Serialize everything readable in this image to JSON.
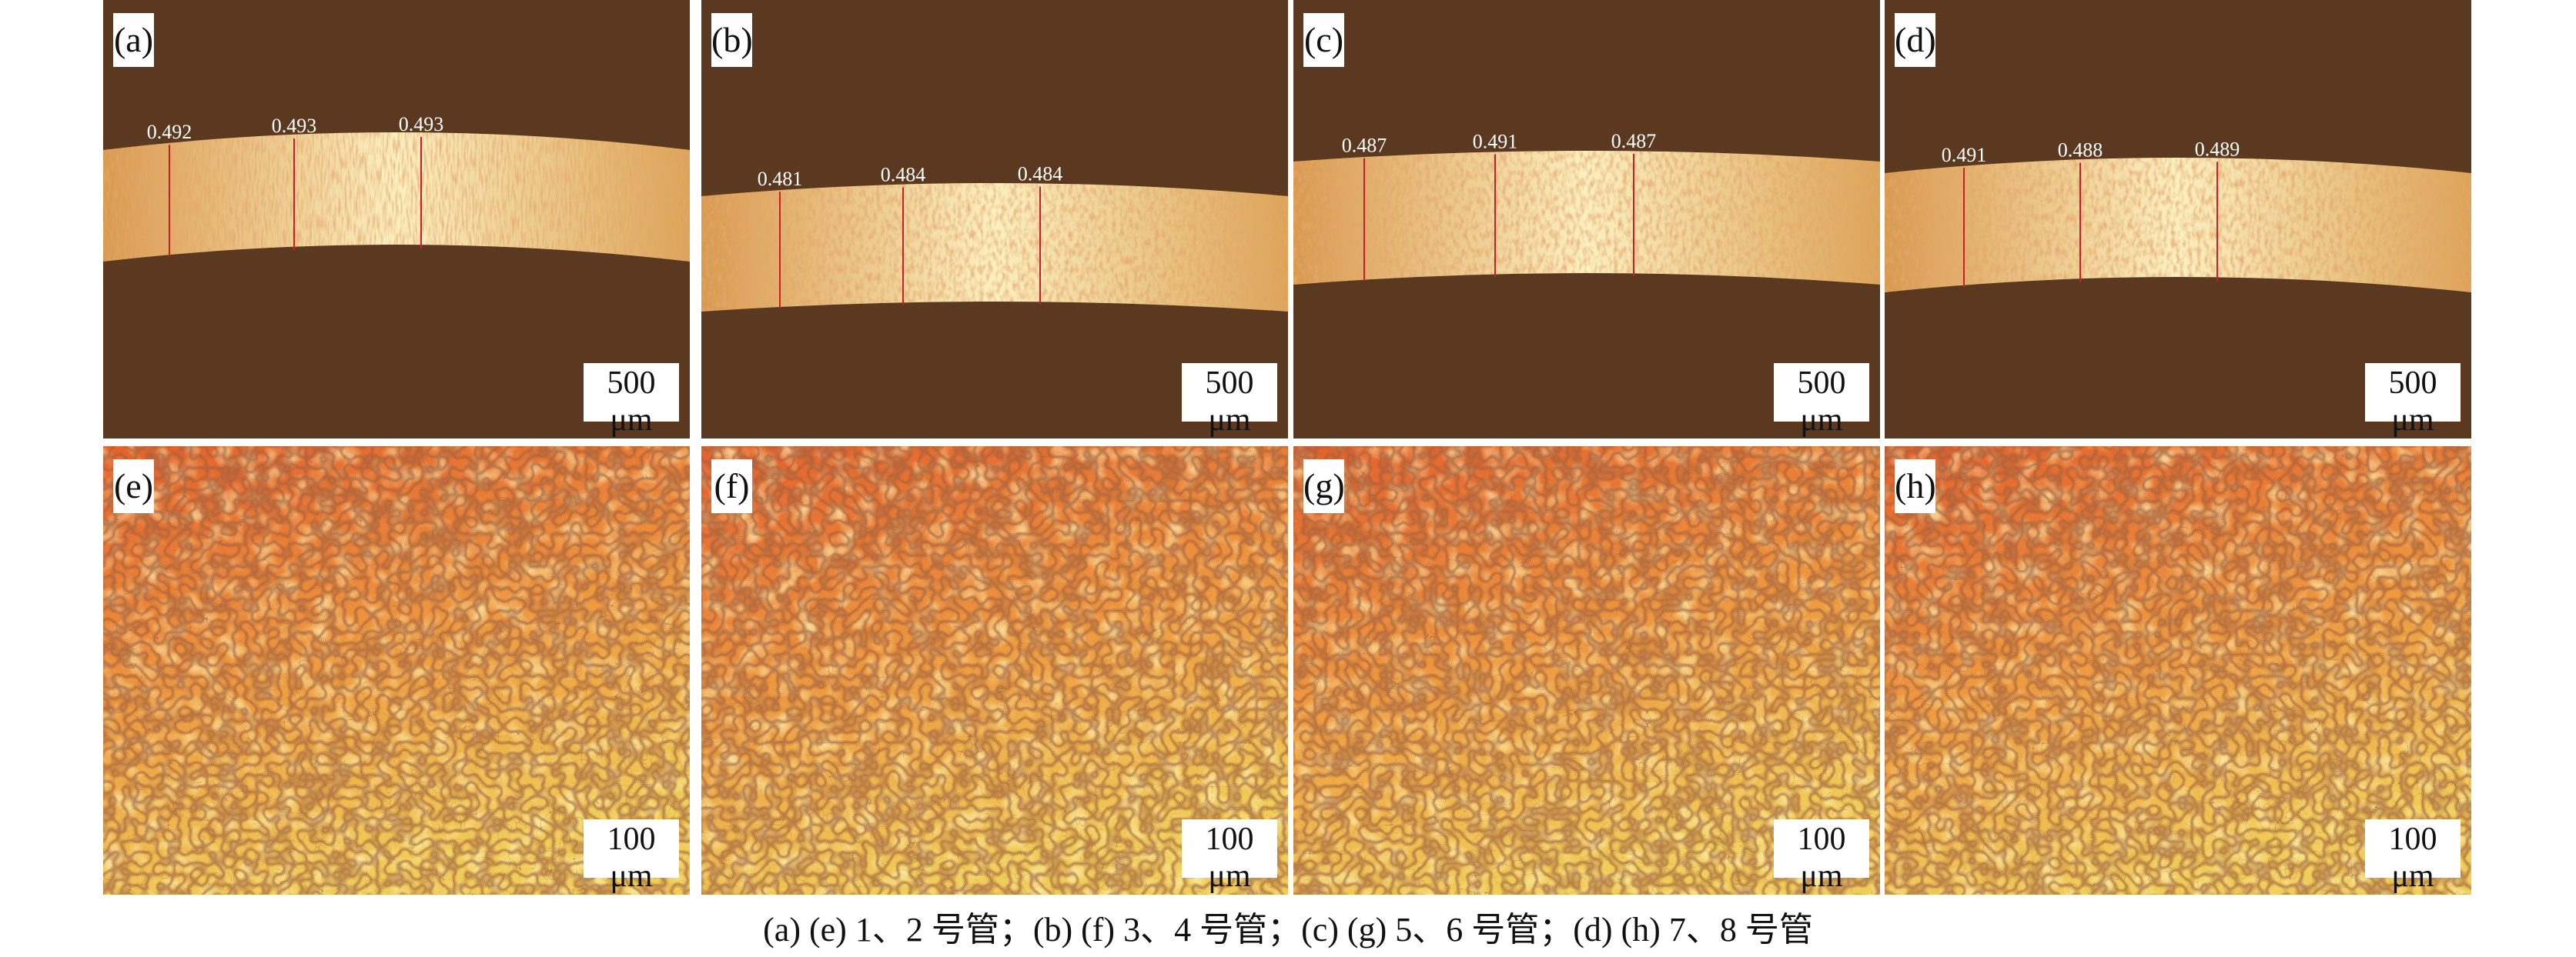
{
  "panels_top": [
    {
      "label": "(a)",
      "scale_bar": "500 μm",
      "thickness": [
        "0.492",
        "0.493",
        "0.493"
      ]
    },
    {
      "label": "(b)",
      "scale_bar": "500 μm",
      "thickness": [
        "0.481",
        "0.484",
        "0.484"
      ]
    },
    {
      "label": "(c)",
      "scale_bar": "500 μm",
      "thickness": [
        "0.487",
        "0.491",
        "0.487"
      ]
    },
    {
      "label": "(d)",
      "scale_bar": "500 μm",
      "thickness": [
        "0.491",
        "0.488",
        "0.489"
      ]
    }
  ],
  "panels_bottom": [
    {
      "label": "(e)",
      "scale_bar": "100 μm"
    },
    {
      "label": "(f)",
      "scale_bar": "100 μm"
    },
    {
      "label": "(g)",
      "scale_bar": "100 μm"
    },
    {
      "label": "(h)",
      "scale_bar": "100 μm"
    }
  ],
  "caption": "(a) (e) 1、2 号管；(b) (f) 3、4 号管；(c) (g) 5、6 号管；(d) (h) 7、8 号管",
  "colors": {
    "background_dark": "#5a3920",
    "band": "#f3dc8a",
    "grain_orange": "#e8612a",
    "grain_yellow": "#f2d060",
    "measure_line": "#c8202a"
  }
}
